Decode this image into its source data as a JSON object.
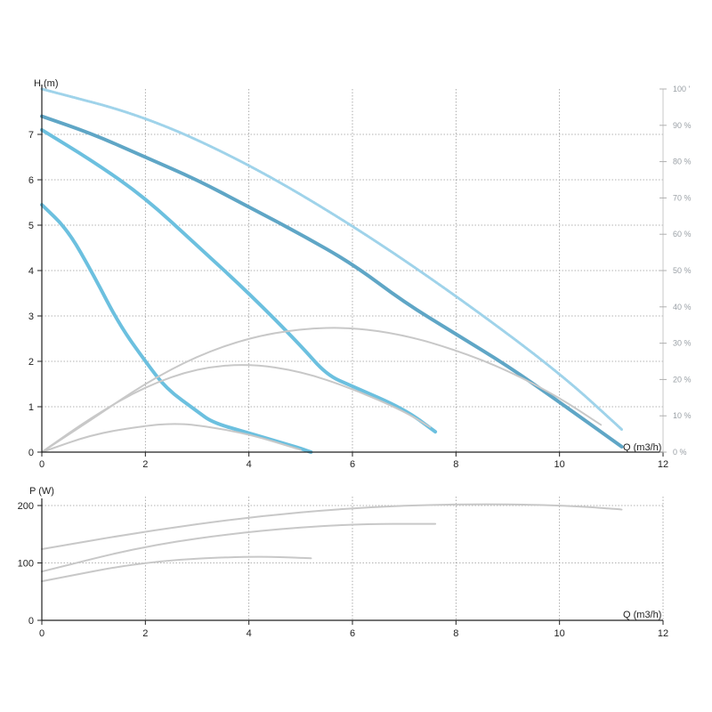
{
  "chart_data": [
    {
      "type": "line",
      "ylabel": "H (m)",
      "xlabel": "Q (m3/h)",
      "xlim": [
        0,
        12
      ],
      "ylim": [
        0,
        8
      ],
      "x_ticks": [
        0,
        2,
        4,
        6,
        8,
        10,
        12
      ],
      "y_ticks": [
        0,
        1,
        2,
        3,
        4,
        5,
        6,
        7
      ],
      "y2_ticks": [
        "0 %",
        "10 %",
        "20 %",
        "30 %",
        "40 %",
        "50 %",
        "60 %",
        "70 %",
        "80 %",
        "90 %",
        "100 '"
      ],
      "y2lim": [
        0,
        100
      ],
      "grid": true,
      "colors": {
        "head_dark": "#5fa6c6",
        "head_light": "#6cc0df",
        "efficiency": "#c8c8c8",
        "max_envelope": "#9fd3ea"
      },
      "series": [
        {
          "role": "head",
          "style": "dark",
          "x": [
            0,
            1,
            2,
            3,
            4,
            5,
            6,
            7,
            8,
            9,
            10,
            11.2
          ],
          "y": [
            7.4,
            7.0,
            6.5,
            6.0,
            5.4,
            4.8,
            4.15,
            3.3,
            2.6,
            1.9,
            1.1,
            0.12
          ]
        },
        {
          "role": "head",
          "style": "light",
          "x": [
            0,
            1,
            2,
            3,
            4,
            5,
            5.5,
            6,
            7,
            7.6
          ],
          "y": [
            7.1,
            6.4,
            5.6,
            4.55,
            3.5,
            2.35,
            1.7,
            1.45,
            0.95,
            0.45
          ]
        },
        {
          "role": "head",
          "style": "light",
          "x": [
            0,
            0.5,
            1,
            1.5,
            2,
            2.4,
            3,
            3.3,
            4,
            4.5,
            5,
            5.2
          ],
          "y": [
            5.45,
            4.9,
            3.9,
            2.8,
            2.0,
            1.4,
            0.9,
            0.65,
            0.42,
            0.25,
            0.08,
            0.0
          ]
        },
        {
          "role": "efficiency",
          "x": [
            0,
            1,
            2,
            3,
            4,
            5,
            6,
            7,
            8,
            9,
            10,
            10.8
          ],
          "y": [
            0,
            0.75,
            1.52,
            2.12,
            2.52,
            2.72,
            2.75,
            2.58,
            2.25,
            1.8,
            1.2,
            0.6
          ]
        },
        {
          "role": "efficiency",
          "x": [
            0,
            1,
            2,
            3,
            4,
            5,
            6,
            7,
            7.5
          ],
          "y": [
            0,
            0.8,
            1.45,
            1.85,
            1.95,
            1.78,
            1.4,
            0.9,
            0.55
          ]
        },
        {
          "role": "efficiency",
          "x": [
            0,
            1,
            2,
            2.5,
            3,
            4,
            5
          ],
          "y": [
            0,
            0.4,
            0.58,
            0.63,
            0.6,
            0.4,
            0.05
          ]
        },
        {
          "role": "max_envelope",
          "x": [
            0,
            2,
            4,
            6,
            8,
            10,
            11.2
          ],
          "y": [
            8.0,
            7.4,
            6.35,
            5.0,
            3.45,
            1.75,
            0.5
          ]
        }
      ]
    },
    {
      "type": "line",
      "ylabel": "P (W)",
      "xlabel": "Q (m3/h)",
      "xlim": [
        0,
        12
      ],
      "ylim": [
        0,
        200
      ],
      "x_ticks": [
        0,
        2,
        4,
        6,
        8,
        10,
        12
      ],
      "y_ticks": [
        0,
        100,
        200
      ],
      "grid": true,
      "colors": {
        "power": "#c8c8c8"
      },
      "series": [
        {
          "x": [
            0,
            2,
            4,
            6,
            8,
            10,
            11.2
          ],
          "y": [
            124,
            155,
            180,
            196,
            203,
            201,
            193
          ]
        },
        {
          "x": [
            0,
            2,
            4,
            6,
            7.6
          ],
          "y": [
            85,
            130,
            155,
            168,
            168
          ]
        },
        {
          "x": [
            0,
            2,
            4,
            5.2
          ],
          "y": [
            68,
            103,
            112,
            108
          ]
        }
      ]
    }
  ]
}
